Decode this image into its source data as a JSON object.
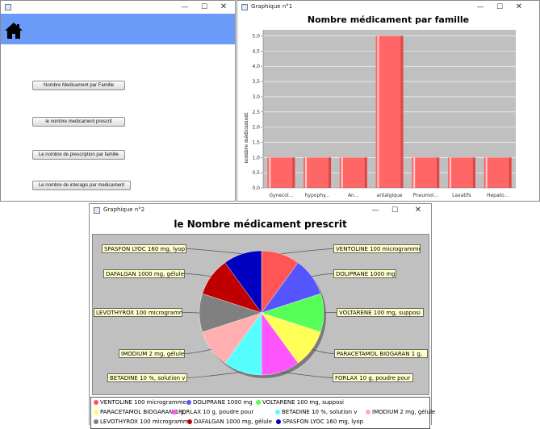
{
  "menu_window": {
    "buttons": [
      "Nombre Medicament par Famille",
      "le nombre medicament prescrit",
      "Le nombre de prescription par famille",
      "Le nombre de interagis par medicament"
    ]
  },
  "window_controls": {
    "minimize": "—",
    "maximize": "☐",
    "close": "✕"
  },
  "bar_window": {
    "title": "Graphique n°1",
    "chart_data": {
      "type": "bar",
      "title": "Nombre médicament par famille",
      "ylabel": "nombre médicament",
      "xlabel": "",
      "categories": [
        "Gynecol...",
        "hypophy...",
        "An...",
        "antalgique",
        "Pneumol...",
        "Laxatifs",
        "Hepato..."
      ],
      "values": [
        1,
        1,
        1,
        5,
        1,
        1,
        1
      ],
      "ylim": [
        0,
        5.2
      ],
      "yticks": [
        "0,0",
        "0,5",
        "1,0",
        "1,5",
        "2,0",
        "2,5",
        "3,0",
        "3,5",
        "4,0",
        "4,5",
        "5,0"
      ],
      "grid": true,
      "bar_color": "#ff6666",
      "plot_background": "#c0c0c0"
    }
  },
  "pie_window": {
    "title": "Graphique n°2",
    "chart_data": {
      "type": "pie",
      "title": "le Nombre médicament prescrit",
      "slices": [
        {
          "label": "VENTOLINE 100 microgramme",
          "value": 1,
          "color": "#ff5555"
        },
        {
          "label": "DOLIPRANE 1000 mg",
          "value": 1,
          "color": "#5555ff"
        },
        {
          "label": "VOLTARENE 100 mg, supposi",
          "value": 1,
          "color": "#55ff55"
        },
        {
          "label": "PARACETAMOL BIOGARAN 1 g,",
          "value": 1,
          "color": "#ffff55"
        },
        {
          "label": "FORLAX 10 g, poudre pour",
          "value": 1,
          "color": "#ff55ff"
        },
        {
          "label": "BETADINE 10 %, solution v",
          "value": 1,
          "color": "#55ffff"
        },
        {
          "label": "IMODIUM 2 mg, gélule",
          "value": 1,
          "color": "#ffafaf"
        },
        {
          "label": "LEVOTHYROX 100 microgramm",
          "value": 1,
          "color": "#808080"
        },
        {
          "label": "DAFALGAN 1000 mg, gélule",
          "value": 1,
          "color": "#c00000"
        },
        {
          "label": "SPASFON LYOC 160 mg, lyop",
          "value": 1,
          "color": "#0000c0"
        }
      ],
      "plot_background": "#c0c0c0"
    }
  }
}
